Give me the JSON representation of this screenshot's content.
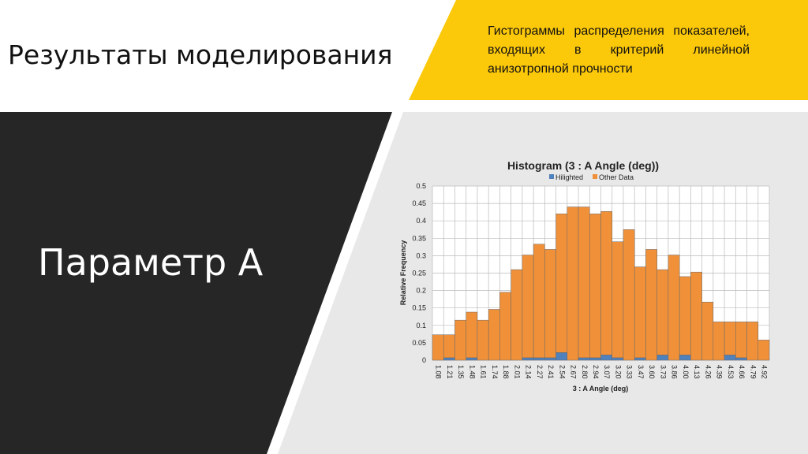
{
  "slide": {
    "title": "Результаты моделирования",
    "subtitle": "Параметр А",
    "note": "Гистограммы распределения показателей, входящих в критерий линейной анизотропной прочности"
  },
  "chart_data": {
    "type": "stacked_bar",
    "title": "Histogram (3 : A Angle (deg))",
    "x_label": "3 : A Angle (deg)",
    "y_label": "Relative Frequency",
    "categories": [
      "1.08",
      "1.21",
      "1.35",
      "1.48",
      "1.61",
      "1.74",
      "1.88",
      "2.01",
      "2.14",
      "2.27",
      "2.41",
      "2.54",
      "2.67",
      "2.80",
      "2.94",
      "3.07",
      "3.20",
      "3.33",
      "3.47",
      "3.60",
      "3.73",
      "3.86",
      "4.00",
      "4.13",
      "4.26",
      "4.39",
      "4.53",
      "4.66",
      "4.79",
      "4.92"
    ],
    "series": [
      {
        "name": "Hilighted",
        "color": "#4f81bd",
        "values": [
          0,
          0.007,
          0,
          0.007,
          0,
          0,
          0,
          0,
          0.007,
          0.007,
          0.007,
          0.022,
          0,
          0.007,
          0.007,
          0.015,
          0.007,
          0,
          0.007,
          0,
          0.015,
          0,
          0.015,
          0,
          0,
          0,
          0.015,
          0.007,
          0,
          0
        ]
      },
      {
        "name": "Other Data",
        "color": "#f0913a",
        "values": [
          0.073,
          0.066,
          0.115,
          0.131,
          0.115,
          0.146,
          0.195,
          0.26,
          0.295,
          0.326,
          0.311,
          0.398,
          0.44,
          0.433,
          0.413,
          0.412,
          0.333,
          0.375,
          0.261,
          0.318,
          0.245,
          0.302,
          0.225,
          0.253,
          0.167,
          0.11,
          0.095,
          0.103,
          0.11,
          0.058
        ]
      }
    ],
    "ylim": [
      0,
      0.5
    ],
    "yticks": [
      0,
      0.05,
      0.1,
      0.15,
      0.2,
      0.25,
      0.3,
      0.35,
      0.4,
      0.45,
      0.5
    ],
    "grid": true,
    "legend": "top"
  }
}
